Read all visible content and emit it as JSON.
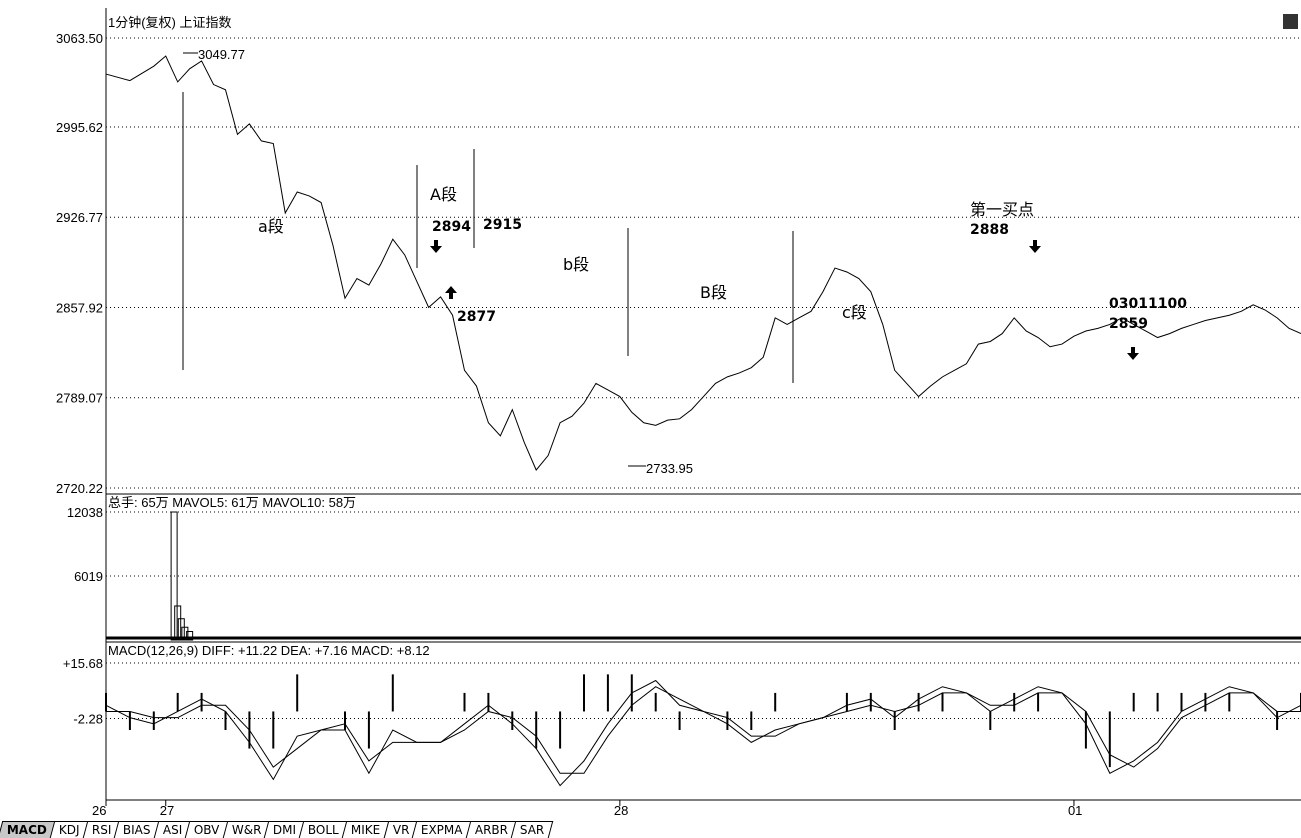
{
  "header": {
    "price_title": "1分钟(复权)  上证指数",
    "volume_title": "总手: 65万 MAVOL5: 61万 MAVOL10: 58万",
    "macd_title": "MACD(12,26,9) DIFF: +11.22 DEA: +7.16 MACD: +8.12"
  },
  "tabs": [
    "MACD",
    "KDJ",
    "RSI",
    "BIAS",
    "ASI",
    "OBV",
    "W&R",
    "DMI",
    "BOLL",
    "MIKE",
    "VR",
    "EXPMA",
    "ARBR",
    "SAR"
  ],
  "active_tab": "MACD",
  "chart_data": [
    {
      "type": "line",
      "panel": "price",
      "y_ticks": [
        "3063.50",
        "2995.62",
        "2926.77",
        "2857.92",
        "2789.07",
        "2720.22"
      ],
      "ylim": [
        2720.22,
        3063.5
      ],
      "xlim": [
        0,
        100
      ],
      "x": [
        0,
        2,
        4,
        5,
        6,
        7,
        8,
        9,
        10,
        11,
        12,
        13,
        14,
        15,
        16,
        17,
        18,
        19,
        20,
        21,
        22,
        23,
        24,
        25,
        26,
        27,
        28,
        29,
        30,
        31,
        32,
        33,
        34,
        35,
        36,
        37,
        38,
        39,
        40,
        41,
        42,
        43,
        44,
        45,
        46,
        47,
        48,
        49,
        50,
        51,
        52,
        53,
        54,
        55,
        56,
        57,
        58,
        59,
        60,
        61,
        62,
        63,
        64,
        65,
        66,
        67,
        68,
        69,
        70,
        71,
        72,
        73,
        74,
        75,
        76,
        77,
        78,
        79,
        80,
        81,
        82,
        83,
        84,
        85,
        86,
        87,
        88,
        89,
        90,
        91,
        92,
        93,
        94,
        95,
        96,
        97,
        98,
        99,
        100
      ],
      "values": [
        3036,
        3031,
        3042,
        3049.77,
        3030,
        3040,
        3046,
        3028,
        3024,
        2990,
        2998,
        2985,
        2983,
        2930,
        2946,
        2943,
        2938,
        2905,
        2865,
        2880,
        2875,
        2891,
        2910,
        2898,
        2878,
        2858,
        2866,
        2852,
        2810,
        2798,
        2770,
        2760,
        2780,
        2755,
        2733.95,
        2745,
        2770,
        2775,
        2785,
        2800,
        2795,
        2790,
        2778,
        2770,
        2768,
        2772,
        2773,
        2780,
        2790,
        2800,
        2805,
        2808,
        2812,
        2820,
        2850,
        2845,
        2850,
        2855,
        2870,
        2888,
        2885,
        2880,
        2870,
        2845,
        2810,
        2800,
        2790,
        2798,
        2805,
        2810,
        2815,
        2830,
        2832,
        2838,
        2850,
        2840,
        2835,
        2828,
        2830,
        2836,
        2840,
        2842,
        2845,
        2850,
        2845,
        2840,
        2835,
        2838,
        2842,
        2845,
        2848,
        2850,
        2852,
        2855,
        2860,
        2856,
        2850,
        2842,
        2838
      ],
      "annotations": {
        "high_label": "3049.77",
        "low_label": "2733.95",
        "seg_a": "a段",
        "seg_A": "A段",
        "seg_b": "b段",
        "seg_B": "B段",
        "seg_c": "c段",
        "p2894": "2894",
        "p2915": "2915",
        "p2877": "2877",
        "p_first": "第一买点",
        "p2888": "2888",
        "p_date": "03011100",
        "p2859": "2859"
      },
      "x_ticks": [
        {
          "x": 0,
          "label": "26"
        },
        {
          "x": 5,
          "label": "27"
        },
        {
          "x": 43,
          "label": "28"
        },
        {
          "x": 81,
          "label": "01"
        }
      ]
    },
    {
      "type": "bar",
      "panel": "volume",
      "y_ticks": [
        "12038",
        "6019"
      ],
      "ylim": [
        0,
        12038
      ],
      "x": [
        5.7,
        6,
        6.3,
        6.6,
        7
      ],
      "values": [
        12038,
        3200,
        2000,
        1200,
        800
      ]
    },
    {
      "type": "line",
      "panel": "macd",
      "y_ticks": [
        "+15.68",
        "-2.28"
      ],
      "ylim": [
        -28,
        16
      ],
      "x": [
        0,
        2,
        4,
        6,
        8,
        10,
        12,
        14,
        16,
        18,
        20,
        22,
        24,
        26,
        28,
        30,
        32,
        34,
        36,
        38,
        40,
        42,
        44,
        46,
        48,
        50,
        52,
        54,
        56,
        58,
        60,
        62,
        64,
        66,
        68,
        70,
        72,
        74,
        76,
        78,
        80,
        82,
        84,
        86,
        88,
        90,
        92,
        94,
        96,
        98,
        100
      ],
      "series": [
        {
          "name": "DIFF",
          "values": [
            2,
            -2,
            -4,
            0,
            4,
            0,
            -10,
            -22,
            -8,
            -6,
            -6,
            -20,
            -6,
            -10,
            -10,
            -4,
            2,
            -4,
            -12,
            -24,
            -16,
            -4,
            6,
            10,
            2,
            0,
            -4,
            -10,
            -6,
            -4,
            -2,
            2,
            4,
            -2,
            4,
            8,
            6,
            0,
            4,
            8,
            6,
            -4,
            -20,
            -16,
            -10,
            0,
            4,
            8,
            6,
            -2,
            2
          ]
        },
        {
          "name": "DEA",
          "values": [
            0,
            0,
            -2,
            -2,
            2,
            2,
            -6,
            -18,
            -12,
            -6,
            -4,
            -16,
            -10,
            -10,
            -10,
            -6,
            0,
            -2,
            -8,
            -20,
            -20,
            -8,
            2,
            8,
            4,
            0,
            -2,
            -8,
            -8,
            -4,
            -2,
            0,
            2,
            0,
            2,
            6,
            6,
            2,
            2,
            6,
            6,
            0,
            -14,
            -18,
            -12,
            -2,
            2,
            6,
            6,
            0,
            0
          ]
        }
      ],
      "bars": [
        2,
        -2,
        -2,
        2,
        2,
        -2,
        -4,
        -4,
        4,
        0,
        -2,
        -4,
        4,
        0,
        0,
        2,
        2,
        -2,
        -4,
        -4,
        4,
        4,
        4,
        2,
        -2,
        0,
        -2,
        -2,
        2,
        0,
        0,
        2,
        2,
        -2,
        2,
        2,
        0,
        -2,
        2,
        2,
        0,
        -4,
        -6,
        2,
        2,
        2,
        2,
        2,
        0,
        -2,
        2
      ]
    }
  ]
}
